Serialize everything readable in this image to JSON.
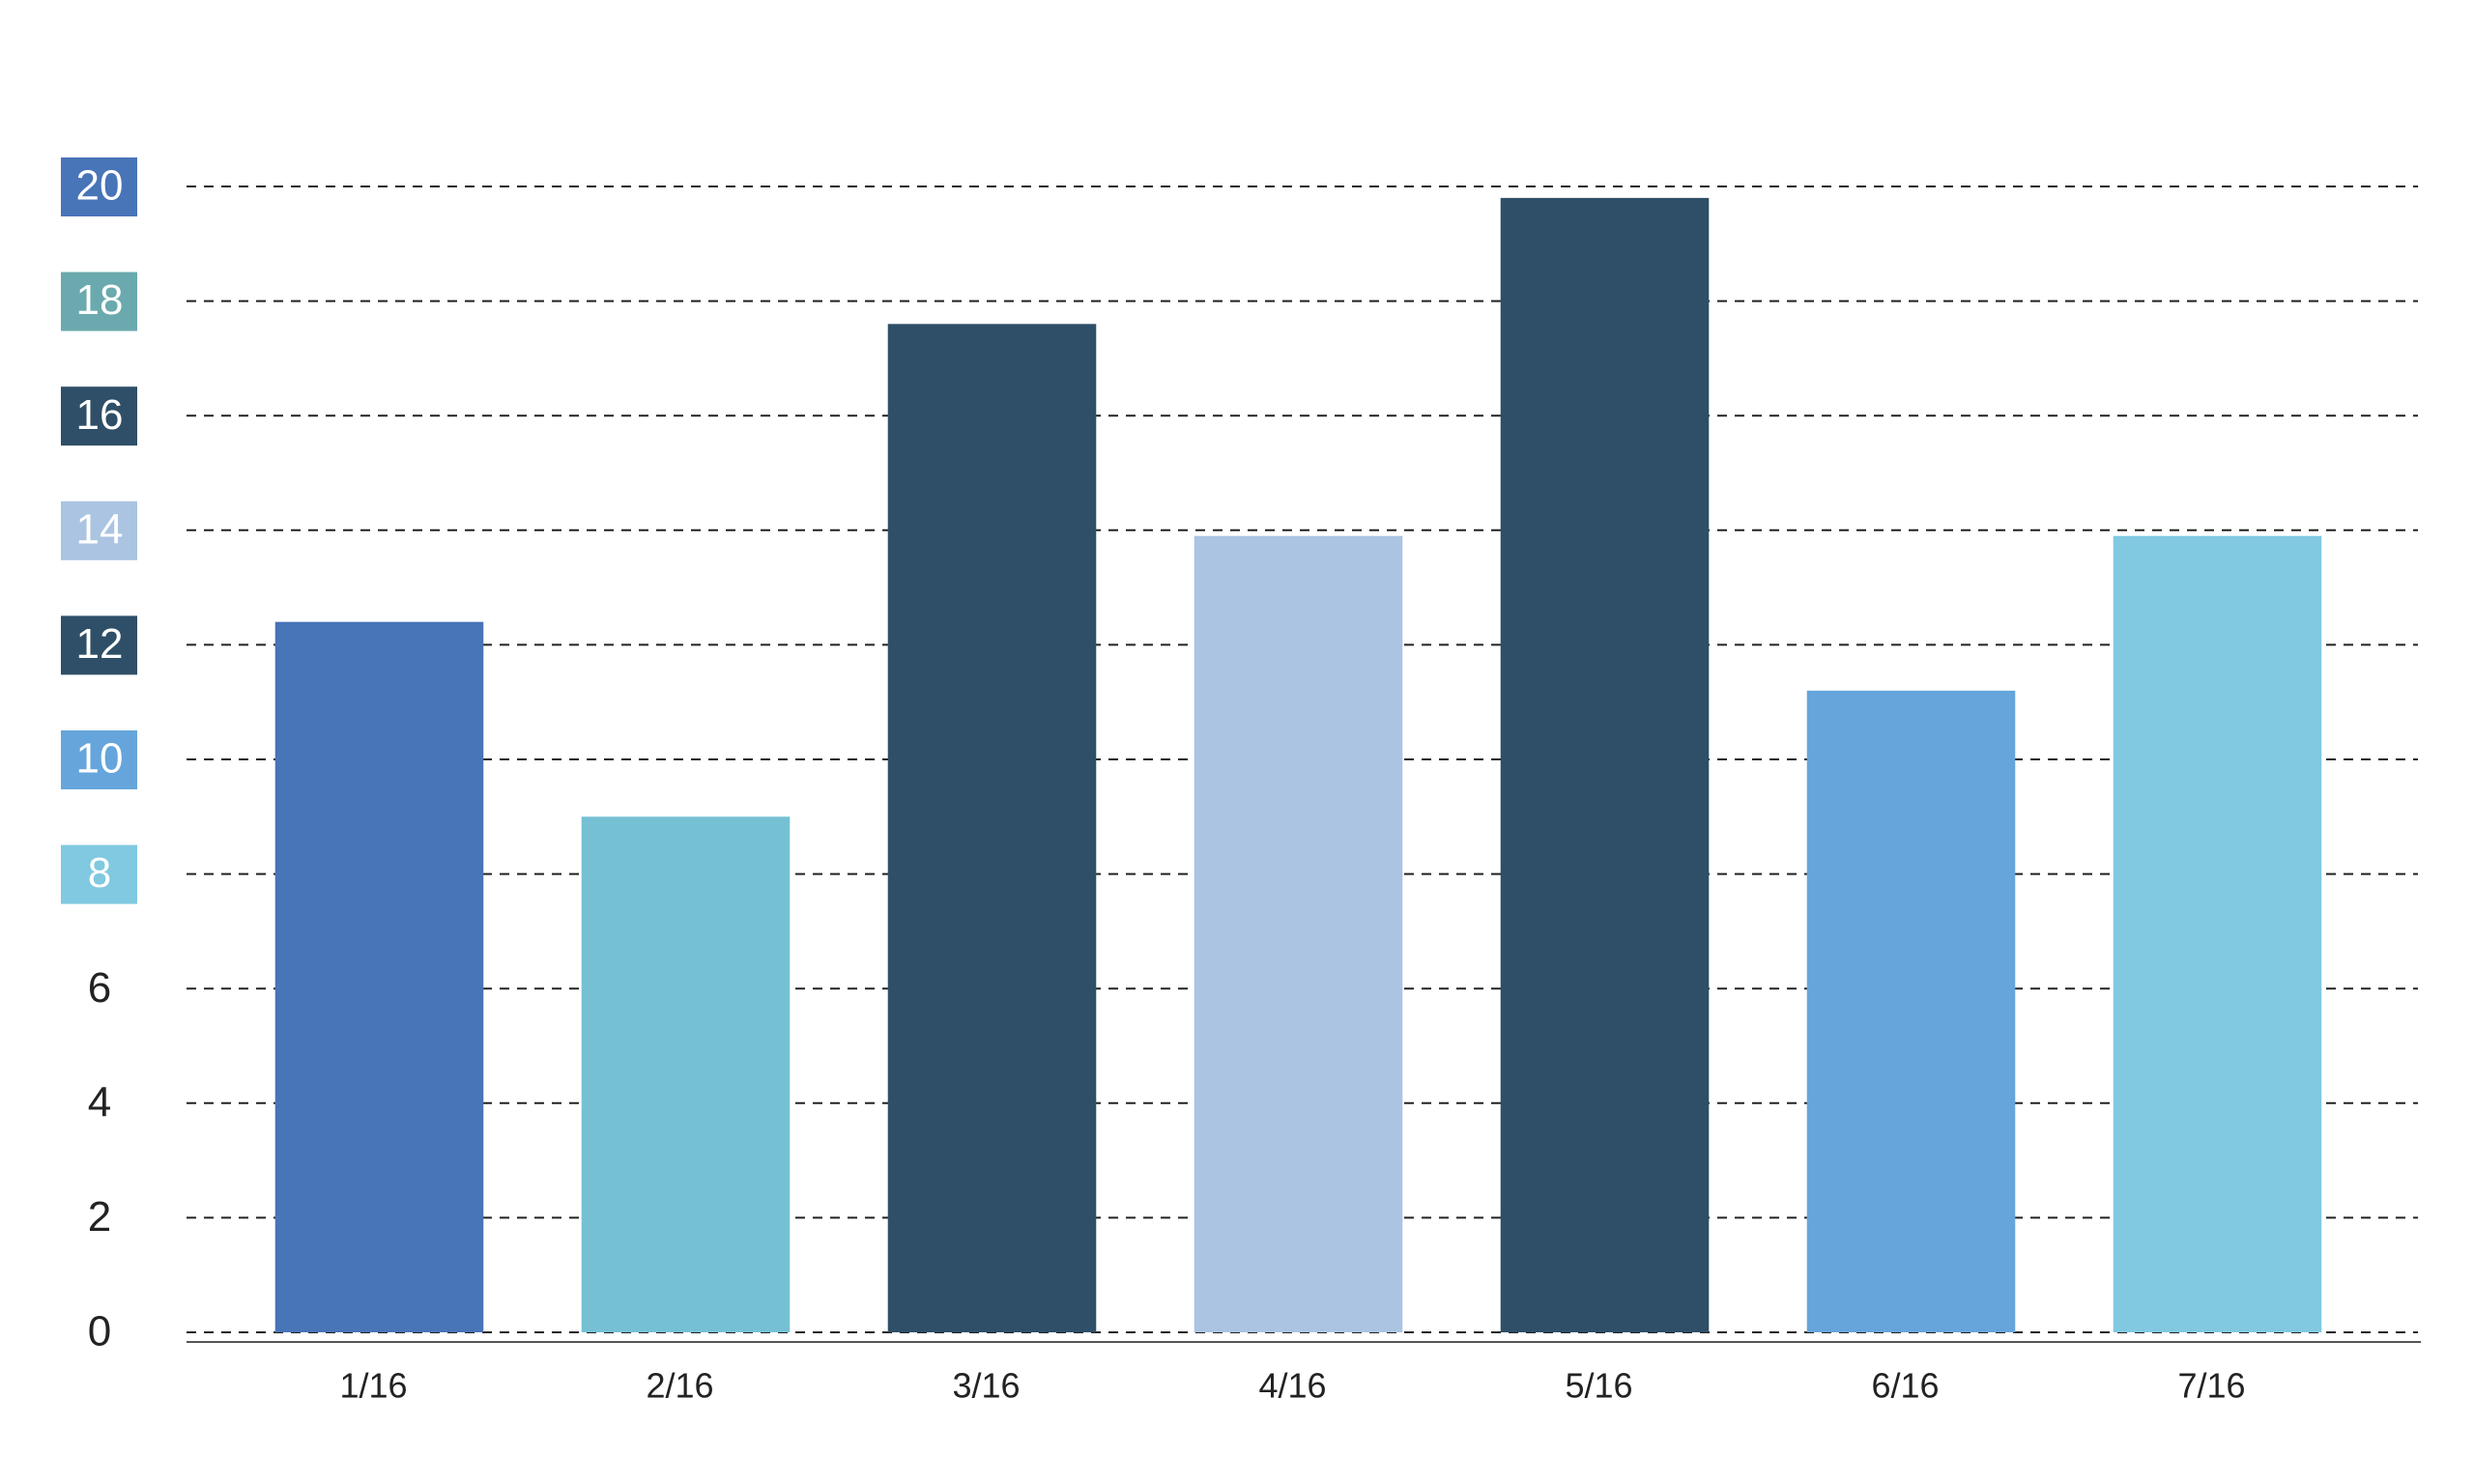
{
  "chart_data": {
    "type": "bar",
    "categories": [
      "1/16",
      "2/16",
      "3/16",
      "4/16",
      "5/16",
      "6/16",
      "7/16"
    ],
    "values": [
      12.4,
      9,
      17.6,
      13.9,
      19.8,
      11.2,
      13.9
    ],
    "colors": [
      "#4874b8",
      "#76c0d4",
      "#2e4f67",
      "#aac4e2",
      "#2e4f67",
      "#65a5db",
      "#80c9e0"
    ],
    "ylim": [
      0,
      20
    ],
    "yticks": [
      0,
      2,
      4,
      6,
      8,
      10,
      12,
      14,
      16,
      18,
      20
    ],
    "ytick_colors": [
      null,
      null,
      null,
      null,
      "#80c9e0",
      "#65a5db",
      "#2e4f67",
      "#aac4e2",
      "#2e4f67",
      "#6aa9ad",
      "#4874b8"
    ],
    "grid": true
  }
}
